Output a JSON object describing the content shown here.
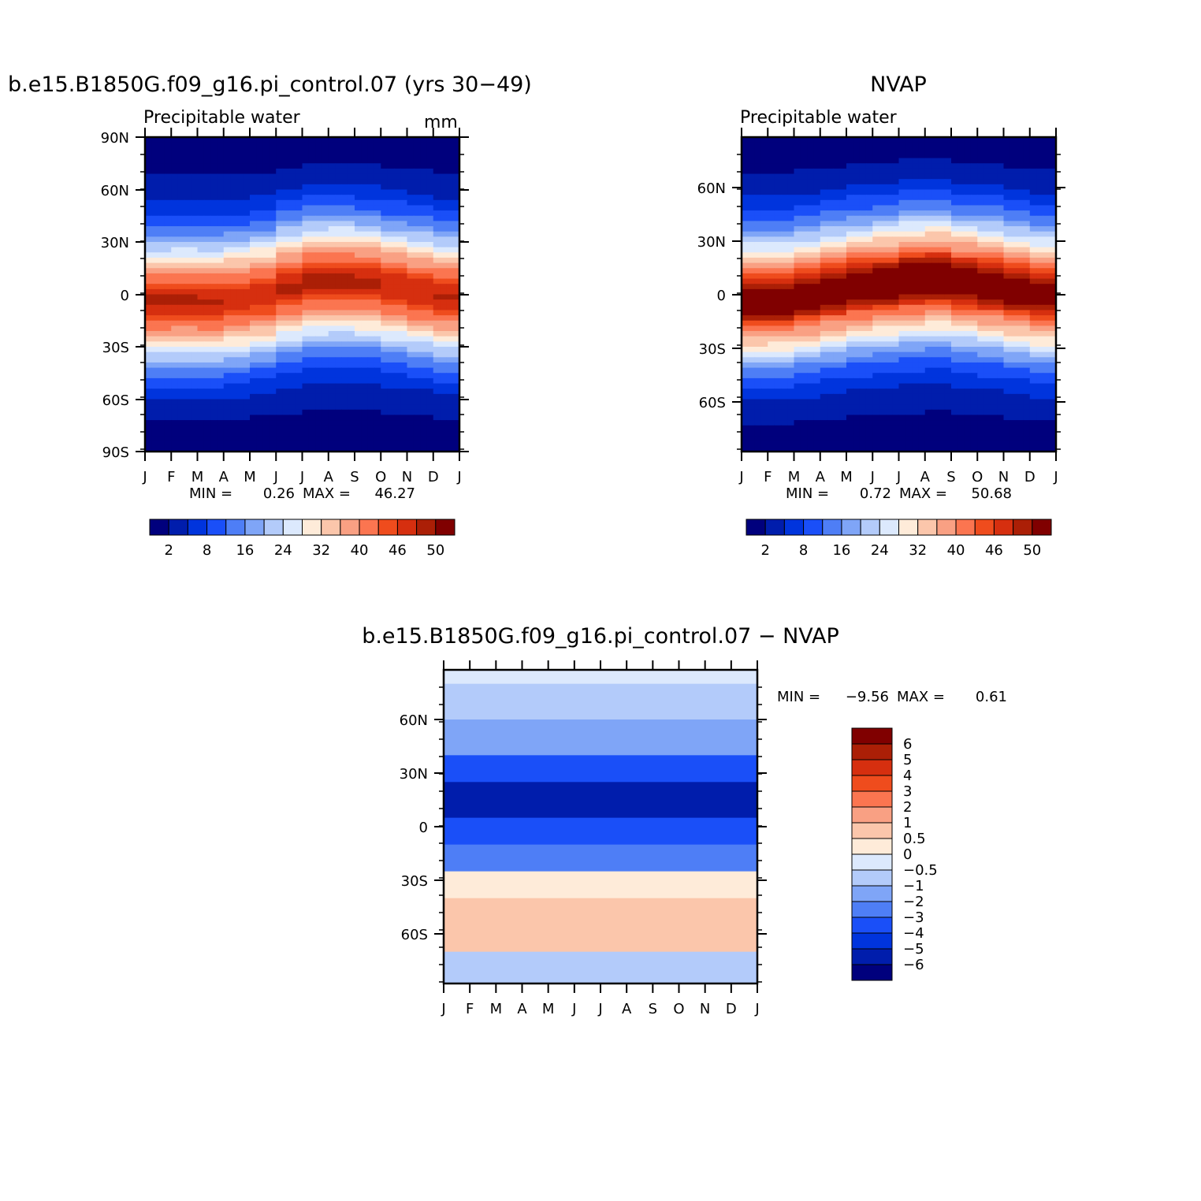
{
  "chart_data": [
    {
      "type": "heatmap",
      "title": "b.e15.B1850G.f09_g16.pi_control.07 (yrs 30−49)",
      "subtitle": "Precipitable water",
      "units": "mm",
      "x_ticks": [
        "J",
        "F",
        "M",
        "A",
        "M",
        "J",
        "J",
        "A",
        "S",
        "O",
        "N",
        "D",
        "J"
      ],
      "y_ticks": [
        "90N",
        "60N",
        "30N",
        "0",
        "30S",
        "60S",
        "90S"
      ],
      "stats": {
        "min_label": "MIN =",
        "min": "0.26",
        "max_label": "MAX =",
        "max": "46.27"
      },
      "colorbar": {
        "orientation": "horizontal",
        "labels": [
          "2",
          "8",
          "16",
          "24",
          "32",
          "40",
          "46",
          "50"
        ],
        "colors": [
          "#00007d",
          "#001dac",
          "#0034dd",
          "#1a4ff8",
          "#4e7ef6",
          "#7fa5f7",
          "#b3cbfa",
          "#dce9fd",
          "#feebd9",
          "#fbc6ab",
          "#f9a083",
          "#fb7550",
          "#ef4c1d",
          "#d62f0f",
          "#ab1f06",
          "#800000"
        ]
      },
      "peak_lat_by_month": [
        -3,
        -3,
        -4,
        -3,
        -1,
        3,
        6,
        7,
        6,
        4,
        2,
        0
      ]
    },
    {
      "type": "heatmap",
      "title": "NVAP",
      "subtitle": "Precipitable water",
      "x_ticks": [
        "J",
        "F",
        "M",
        "A",
        "M",
        "J",
        "J",
        "A",
        "S",
        "O",
        "N",
        "D",
        "J"
      ],
      "y_ticks": [
        "60N",
        "30N",
        "0",
        "30S",
        "60S"
      ],
      "stats": {
        "min_label": "MIN =",
        "min": "0.72",
        "max_label": "MAX =",
        "max": "50.68"
      },
      "colorbar": {
        "orientation": "horizontal",
        "labels": [
          "2",
          "8",
          "16",
          "24",
          "32",
          "40",
          "46",
          "50"
        ],
        "colors": [
          "#00007d",
          "#001dac",
          "#0034dd",
          "#1a4ff8",
          "#4e7ef6",
          "#7fa5f7",
          "#b3cbfa",
          "#dce9fd",
          "#feebd9",
          "#fbc6ab",
          "#f9a083",
          "#fb7550",
          "#ef4c1d",
          "#d62f0f",
          "#ab1f06",
          "#800000"
        ]
      },
      "peak_lat_by_month": [
        -2,
        -2,
        0,
        2,
        4,
        5,
        7,
        8,
        6,
        5,
        3,
        1
      ]
    },
    {
      "type": "heatmap",
      "title": "b.e15.B1850G.f09_g16.pi_control.07 − NVAP",
      "x_ticks": [
        "J",
        "F",
        "M",
        "A",
        "M",
        "J",
        "J",
        "A",
        "S",
        "O",
        "N",
        "D",
        "J"
      ],
      "y_ticks": [
        "60N",
        "30N",
        "0",
        "30S",
        "60S"
      ],
      "stats": {
        "min_label": "MIN =",
        "min": "−9.56",
        "max_label": "MAX =",
        "max": "0.61"
      },
      "colorbar": {
        "orientation": "vertical",
        "labels": [
          "6",
          "5",
          "4",
          "3",
          "2",
          "1",
          "0.5",
          "0",
          "−0.5",
          "−1",
          "−2",
          "−3",
          "−4",
          "−5",
          "−6"
        ],
        "colors": [
          "#800000",
          "#ab1f06",
          "#d62f0f",
          "#ef4c1d",
          "#fb7550",
          "#f9a083",
          "#fbc6ab",
          "#feebd9",
          "#dce9fd",
          "#b3cbfa",
          "#7fa5f7",
          "#4e7ef6",
          "#1a4ff8",
          "#0034dd",
          "#001dac",
          "#00007d"
        ]
      },
      "bands": [
        {
          "label": "80N–90N",
          "value": -0.5
        },
        {
          "label": "60N–80N",
          "value": -1
        },
        {
          "label": "40N–60N",
          "value": -2
        },
        {
          "label": "25N–40N",
          "value": -4
        },
        {
          "label": "5N–25N",
          "value": -6
        },
        {
          "label": "10S–5N",
          "value": -4
        },
        {
          "label": "25S–10S",
          "value": -3
        },
        {
          "label": "40S–25S",
          "value": 0
        },
        {
          "label": "70S–40S",
          "value": 0.5
        },
        {
          "label": "90S–70S",
          "value": -1
        }
      ]
    }
  ]
}
